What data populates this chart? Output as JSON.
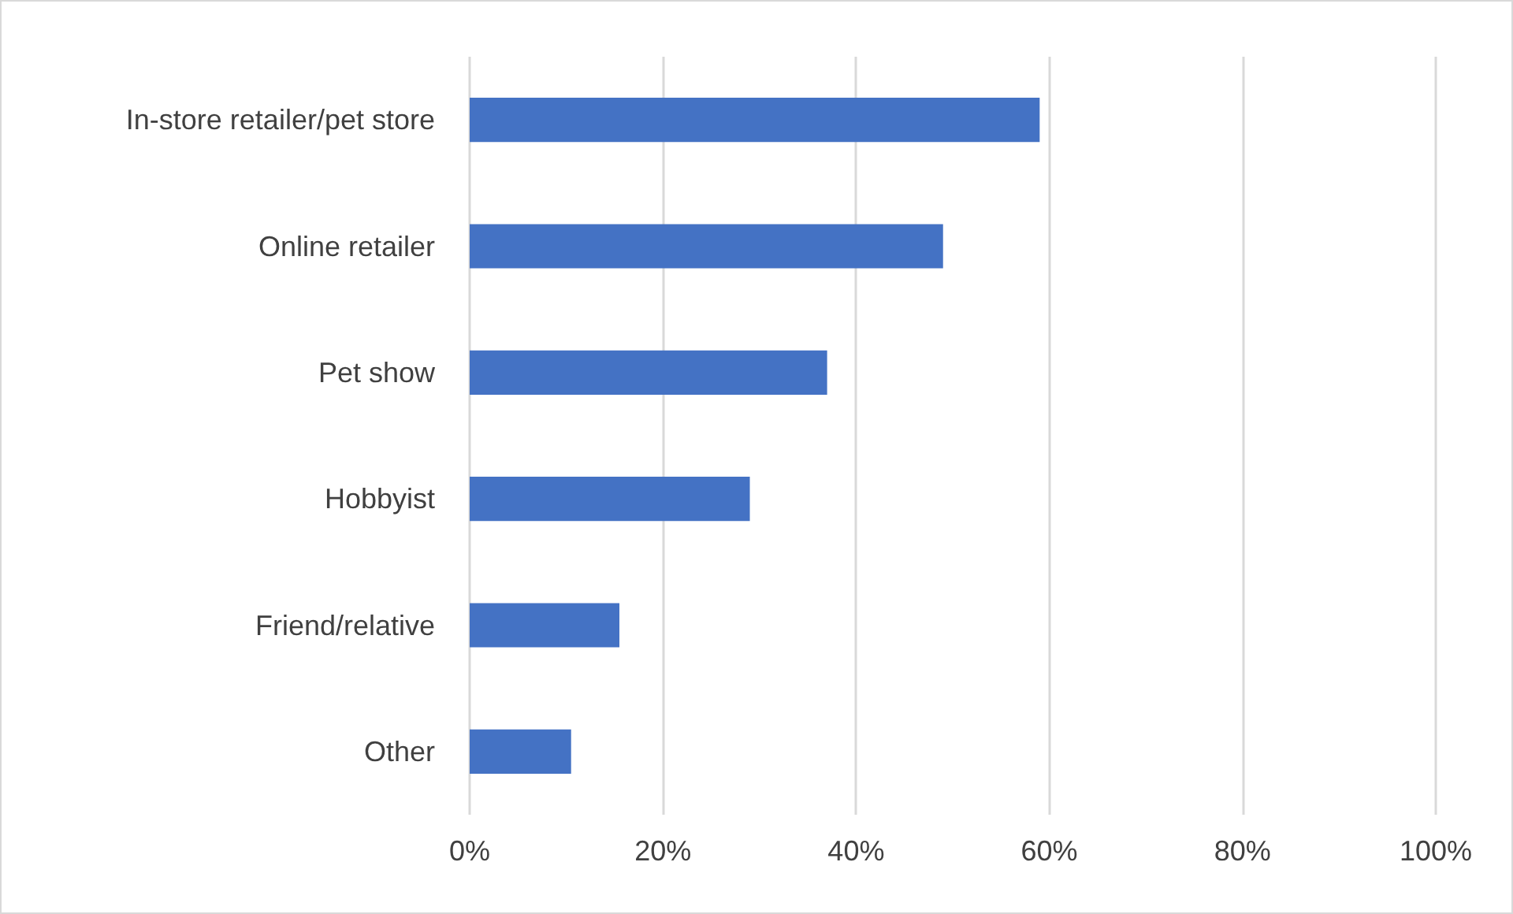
{
  "chart_data": {
    "type": "bar",
    "orientation": "horizontal",
    "categories": [
      "In-store retailer/pet store",
      "Online retailer",
      "Pet show",
      "Hobbyist",
      "Friend/relative",
      "Other"
    ],
    "values": [
      59,
      49,
      37,
      29,
      15.5,
      10.5
    ],
    "color": "#4472c4",
    "xlim": [
      0,
      100
    ],
    "xticks": [
      {
        "value": 0,
        "label": "0%"
      },
      {
        "value": 20,
        "label": "20%"
      },
      {
        "value": 40,
        "label": "40%"
      },
      {
        "value": 60,
        "label": "60%"
      },
      {
        "value": 80,
        "label": "80%"
      },
      {
        "value": 100,
        "label": "100%"
      }
    ],
    "grid": "x"
  }
}
